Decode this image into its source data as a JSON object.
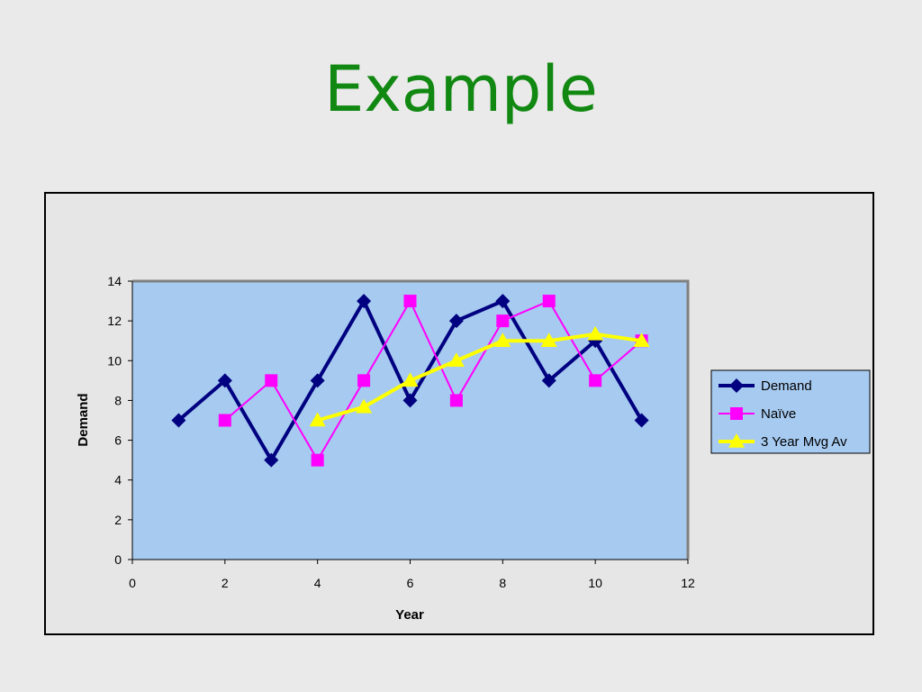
{
  "slide": {
    "title": "Example"
  },
  "chart_data": {
    "type": "line",
    "title": "",
    "xlabel": "Year",
    "ylabel": "Demand",
    "xlim": [
      0,
      12
    ],
    "ylim": [
      0,
      14
    ],
    "xticks": [
      0,
      2,
      4,
      6,
      8,
      10,
      12
    ],
    "yticks": [
      0,
      2,
      4,
      6,
      8,
      10,
      12,
      14
    ],
    "grid": false,
    "legend_position": "right",
    "plot_background": "#a6caf0",
    "series": [
      {
        "name": "Demand",
        "color": "#000080",
        "marker": "diamond",
        "points": [
          [
            1,
            7
          ],
          [
            2,
            9
          ],
          [
            3,
            5
          ],
          [
            4,
            9
          ],
          [
            5,
            13
          ],
          [
            6,
            8
          ],
          [
            7,
            12
          ],
          [
            8,
            13
          ],
          [
            9,
            9
          ],
          [
            10,
            11
          ],
          [
            11,
            7
          ]
        ]
      },
      {
        "name": "Naïve",
        "color": "#ff00ff",
        "marker": "square",
        "points": [
          [
            2,
            7
          ],
          [
            3,
            9
          ],
          [
            4,
            5
          ],
          [
            5,
            9
          ],
          [
            6,
            13
          ],
          [
            7,
            8
          ],
          [
            8,
            12
          ],
          [
            9,
            13
          ],
          [
            10,
            9
          ],
          [
            11,
            11
          ]
        ]
      },
      {
        "name": "3 Year Mvg Av",
        "color": "#ffff00",
        "marker": "triangle",
        "points": [
          [
            4,
            7
          ],
          [
            5,
            7.67
          ],
          [
            6,
            9
          ],
          [
            7,
            10
          ],
          [
            8,
            11
          ],
          [
            9,
            11
          ],
          [
            10,
            11.33
          ],
          [
            11,
            11
          ]
        ]
      }
    ]
  }
}
